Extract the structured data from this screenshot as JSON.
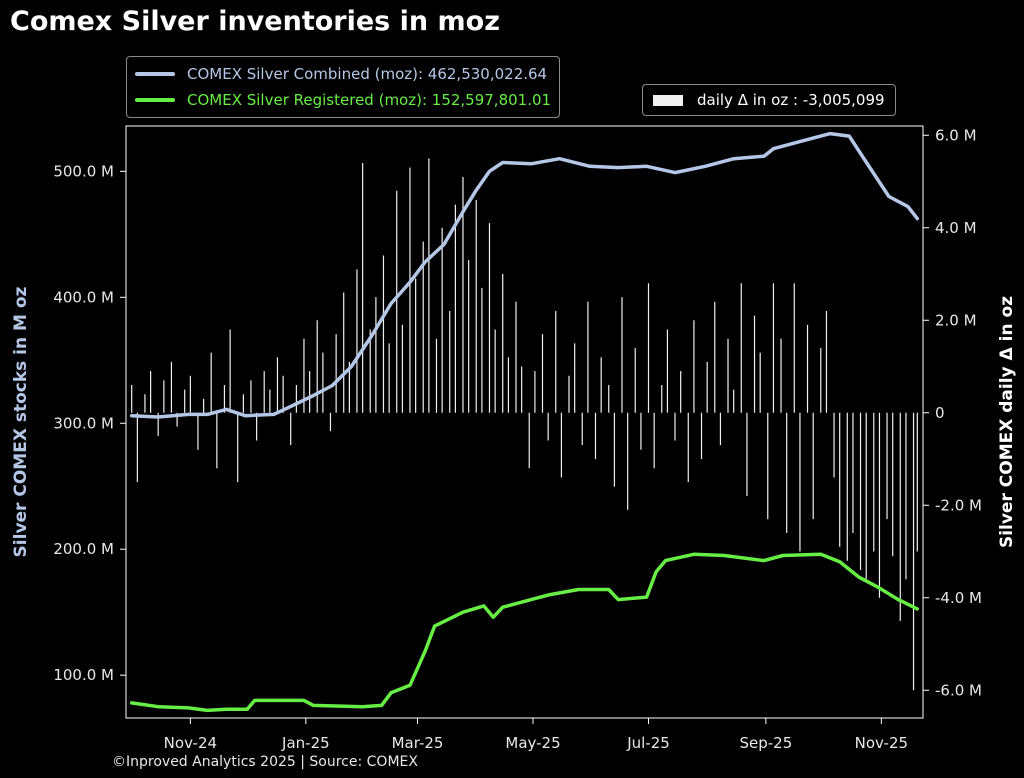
{
  "title": "Comex Silver inventories in moz",
  "credit": "©Inproved Analytics 2025 | Source: COMEX",
  "colors": {
    "background": "#000000",
    "combined": "#b4c7e7",
    "registered": "#66ee44",
    "bars": "#f0f0f0",
    "axis": "#ffffff"
  },
  "chart_data": {
    "type": "line",
    "title": "Comex Silver inventories in moz",
    "x_ticks": [
      "Nov-24",
      "Jan-25",
      "Mar-25",
      "May-25",
      "Jul-25",
      "Sep-25",
      "Nov-25"
    ],
    "xlim": [
      "2024-09-28",
      "2025-11-23"
    ],
    "ylabel_left": "Silver COMEX stocks in M oz",
    "ylabel_right": "Silver COMEX daily Δ in oz",
    "ylim_left": [
      66,
      536
    ],
    "ylim_right": [
      -6.6,
      6.2
    ],
    "yticks_left": [
      "100.0 M",
      "200.0 M",
      "300.0 M",
      "400.0 M",
      "500.0 M"
    ],
    "yticks_right": [
      "-6.0 M",
      "-4.0 M",
      "-2.0 M",
      "0",
      "2.0 M",
      "4.0 M",
      "6.0 M"
    ],
    "legend": {
      "combined": "COMEX Silver Combined (moz): 462,530,022.64",
      "registered": "COMEX Silver Registered (moz): 152,597,801.01",
      "daily": "daily Δ in oz : -3,005,099"
    },
    "series": [
      {
        "name": "COMEX Silver Combined (moz)",
        "axis": "left",
        "points": [
          [
            "2024-10-01",
            306
          ],
          [
            "2024-10-15",
            305
          ],
          [
            "2024-10-31",
            307
          ],
          [
            "2024-11-10",
            307
          ],
          [
            "2024-11-20",
            311
          ],
          [
            "2024-11-30",
            306
          ],
          [
            "2024-12-15",
            307
          ],
          [
            "2024-12-25",
            314
          ],
          [
            "2025-01-05",
            322
          ],
          [
            "2025-01-15",
            330
          ],
          [
            "2025-01-25",
            345
          ],
          [
            "2025-02-05",
            370
          ],
          [
            "2025-02-15",
            395
          ],
          [
            "2025-02-25",
            412
          ],
          [
            "2025-03-05",
            428
          ],
          [
            "2025-03-15",
            442
          ],
          [
            "2025-03-25",
            468
          ],
          [
            "2025-04-01",
            485
          ],
          [
            "2025-04-08",
            500
          ],
          [
            "2025-04-15",
            507
          ],
          [
            "2025-04-30",
            506
          ],
          [
            "2025-05-15",
            510
          ],
          [
            "2025-05-31",
            504
          ],
          [
            "2025-06-15",
            503
          ],
          [
            "2025-06-30",
            504
          ],
          [
            "2025-07-15",
            499
          ],
          [
            "2025-07-31",
            504
          ],
          [
            "2025-08-15",
            510
          ],
          [
            "2025-08-31",
            512
          ],
          [
            "2025-09-05",
            518
          ],
          [
            "2025-09-20",
            524
          ],
          [
            "2025-10-05",
            530
          ],
          [
            "2025-10-15",
            528
          ],
          [
            "2025-10-25",
            505
          ],
          [
            "2025-11-05",
            480
          ],
          [
            "2025-11-15",
            472
          ],
          [
            "2025-11-20",
            462.5
          ]
        ]
      },
      {
        "name": "COMEX Silver Registered (moz)",
        "axis": "left",
        "points": [
          [
            "2024-10-01",
            78
          ],
          [
            "2024-10-15",
            75
          ],
          [
            "2024-10-31",
            74
          ],
          [
            "2024-11-10",
            72
          ],
          [
            "2024-11-20",
            73
          ],
          [
            "2024-12-01",
            73
          ],
          [
            "2024-12-05",
            80
          ],
          [
            "2024-12-31",
            80
          ],
          [
            "2025-01-05",
            76
          ],
          [
            "2025-01-31",
            75
          ],
          [
            "2025-02-10",
            76
          ],
          [
            "2025-02-15",
            86
          ],
          [
            "2025-02-25",
            92
          ],
          [
            "2025-03-05",
            119
          ],
          [
            "2025-03-10",
            139
          ],
          [
            "2025-03-25",
            150
          ],
          [
            "2025-04-05",
            155
          ],
          [
            "2025-04-10",
            146
          ],
          [
            "2025-04-15",
            154
          ],
          [
            "2025-04-30",
            160
          ],
          [
            "2025-05-10",
            164
          ],
          [
            "2025-05-25",
            168
          ],
          [
            "2025-06-10",
            168
          ],
          [
            "2025-06-15",
            160
          ],
          [
            "2025-06-30",
            162
          ],
          [
            "2025-07-05",
            182
          ],
          [
            "2025-07-10",
            191
          ],
          [
            "2025-07-25",
            196
          ],
          [
            "2025-08-10",
            195
          ],
          [
            "2025-08-31",
            191
          ],
          [
            "2025-09-10",
            195
          ],
          [
            "2025-09-30",
            196
          ],
          [
            "2025-10-10",
            190
          ],
          [
            "2025-10-20",
            178
          ],
          [
            "2025-10-30",
            170
          ],
          [
            "2025-11-10",
            160
          ],
          [
            "2025-11-20",
            152.6
          ]
        ]
      }
    ],
    "bars": {
      "name": "daily Δ in oz",
      "axis": "right",
      "x": [
        "2024-10-01",
        "2024-10-04",
        "2024-10-08",
        "2024-10-11",
        "2024-10-15",
        "2024-10-18",
        "2024-10-22",
        "2024-10-25",
        "2024-10-29",
        "2024-11-01",
        "2024-11-05",
        "2024-11-08",
        "2024-11-12",
        "2024-11-15",
        "2024-11-19",
        "2024-11-22",
        "2024-11-26",
        "2024-11-29",
        "2024-12-03",
        "2024-12-06",
        "2024-12-10",
        "2024-12-13",
        "2024-12-17",
        "2024-12-20",
        "2024-12-24",
        "2024-12-27",
        "2024-12-31",
        "2025-01-03",
        "2025-01-07",
        "2025-01-10",
        "2025-01-14",
        "2025-01-17",
        "2025-01-21",
        "2025-01-24",
        "2025-01-28",
        "2025-01-31",
        "2025-02-04",
        "2025-02-07",
        "2025-02-11",
        "2025-02-14",
        "2025-02-18",
        "2025-02-21",
        "2025-02-25",
        "2025-02-28",
        "2025-03-04",
        "2025-03-07",
        "2025-03-11",
        "2025-03-14",
        "2025-03-18",
        "2025-03-21",
        "2025-03-25",
        "2025-03-28",
        "2025-04-01",
        "2025-04-04",
        "2025-04-08",
        "2025-04-11",
        "2025-04-15",
        "2025-04-18",
        "2025-04-22",
        "2025-04-25",
        "2025-04-29",
        "2025-05-02",
        "2025-05-06",
        "2025-05-09",
        "2025-05-13",
        "2025-05-16",
        "2025-05-20",
        "2025-05-23",
        "2025-05-27",
        "2025-05-30",
        "2025-06-03",
        "2025-06-06",
        "2025-06-10",
        "2025-06-13",
        "2025-06-17",
        "2025-06-20",
        "2025-06-24",
        "2025-06-27",
        "2025-07-01",
        "2025-07-04",
        "2025-07-08",
        "2025-07-11",
        "2025-07-15",
        "2025-07-18",
        "2025-07-22",
        "2025-07-25",
        "2025-07-29",
        "2025-08-01",
        "2025-08-05",
        "2025-08-08",
        "2025-08-12",
        "2025-08-15",
        "2025-08-19",
        "2025-08-22",
        "2025-08-26",
        "2025-08-29",
        "2025-09-02",
        "2025-09-05",
        "2025-09-09",
        "2025-09-12",
        "2025-09-16",
        "2025-09-19",
        "2025-09-23",
        "2025-09-26",
        "2025-09-30",
        "2025-10-03",
        "2025-10-07",
        "2025-10-10",
        "2025-10-14",
        "2025-10-17",
        "2025-10-21",
        "2025-10-24",
        "2025-10-28",
        "2025-10-31",
        "2025-11-04",
        "2025-11-07",
        "2025-11-11",
        "2025-11-14",
        "2025-11-18",
        "2025-11-20"
      ],
      "values": [
        0.6,
        -1.5,
        0.4,
        0.9,
        -0.5,
        0.7,
        1.1,
        -0.3,
        0.5,
        0.8,
        -0.8,
        0.3,
        1.3,
        -1.2,
        0.6,
        1.8,
        -1.5,
        0.4,
        0.7,
        -0.6,
        0.9,
        0.5,
        1.2,
        0.8,
        -0.7,
        0.6,
        1.6,
        0.9,
        2.0,
        1.3,
        -0.4,
        1.7,
        2.6,
        1.1,
        3.1,
        5.4,
        1.8,
        2.5,
        3.4,
        1.5,
        4.8,
        1.9,
        5.3,
        2.9,
        3.7,
        5.5,
        1.6,
        4.0,
        2.2,
        4.5,
        5.1,
        3.3,
        4.6,
        2.7,
        4.1,
        1.8,
        3.0,
        1.2,
        2.4,
        1.0,
        -1.2,
        0.9,
        1.7,
        -0.6,
        2.2,
        -1.4,
        0.8,
        1.5,
        -0.7,
        2.4,
        -1.0,
        1.2,
        0.6,
        -1.6,
        2.5,
        -2.1,
        1.4,
        -0.8,
        2.8,
        -1.2,
        0.6,
        1.8,
        -0.6,
        0.9,
        -1.5,
        2.0,
        -1.0,
        1.1,
        2.4,
        -0.7,
        1.6,
        0.5,
        2.8,
        -1.8,
        2.1,
        1.3,
        -2.3,
        2.8,
        1.6,
        -2.6,
        2.8,
        -3.0,
        1.9,
        -2.3,
        1.4,
        2.2,
        -1.4,
        -2.9,
        -3.2,
        -2.6,
        -3.4,
        -3.6,
        -3.0,
        -4.0,
        -2.3,
        -3.1,
        -4.5,
        -3.6,
        -6.0,
        -3.0
      ]
    }
  }
}
